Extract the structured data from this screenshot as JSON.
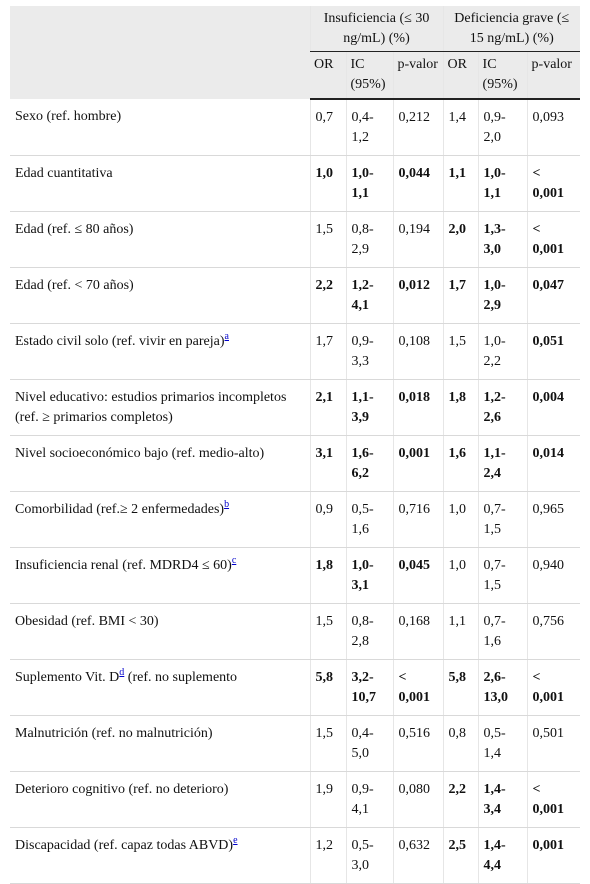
{
  "header": {
    "group1": "Insuficiencia (≤ 30 ng/mL) (%)",
    "group2": "Deficiencia grave (≤ 15 ng/mL) (%)",
    "or": "OR",
    "ic": "IC (95%)",
    "p": "p-valor"
  },
  "rows": [
    {
      "label": "Sexo (ref. hombre)",
      "sup": "",
      "cells": [
        [
          "0,7",
          false
        ],
        [
          "0,4-1,2",
          false
        ],
        [
          "0,212",
          false
        ],
        [
          "1,4",
          false
        ],
        [
          "0,9-2,0",
          false
        ],
        [
          "0,093",
          false
        ]
      ]
    },
    {
      "label": "Edad cuantitativa",
      "sup": "",
      "cells": [
        [
          "1,0",
          true
        ],
        [
          "1,0-1,1",
          true
        ],
        [
          "0,044",
          true
        ],
        [
          "1,1",
          true
        ],
        [
          "1,0-1,1",
          true
        ],
        [
          "< 0,001",
          true
        ]
      ]
    },
    {
      "label": "Edad (ref. ≤ 80 años)",
      "sup": "",
      "cells": [
        [
          "1,5",
          false
        ],
        [
          "0,8-2,9",
          false
        ],
        [
          "0,194",
          false
        ],
        [
          "2,0",
          true
        ],
        [
          "1,3-3,0",
          true
        ],
        [
          "< 0,001",
          true
        ]
      ]
    },
    {
      "label": "Edad (ref. < 70 años)",
      "sup": "",
      "cells": [
        [
          "2,2",
          true
        ],
        [
          "1,2-4,1",
          true
        ],
        [
          "0,012",
          true
        ],
        [
          "1,7",
          true
        ],
        [
          "1,0-2,9",
          true
        ],
        [
          "0,047",
          true
        ]
      ]
    },
    {
      "label": "Estado civil solo (ref. vivir en pareja)",
      "sup": "a",
      "cells": [
        [
          "1,7",
          false
        ],
        [
          "0,9-3,3",
          false
        ],
        [
          "0,108",
          false
        ],
        [
          "1,5",
          false
        ],
        [
          "1,0-2,2",
          false
        ],
        [
          "0,051",
          true
        ]
      ]
    },
    {
      "label": "Nivel educativo: estudios primarios incompletos (ref. ≥ primarios completos)",
      "sup": "",
      "cells": [
        [
          "2,1",
          true
        ],
        [
          "1,1-3,9",
          true
        ],
        [
          "0,018",
          true
        ],
        [
          "1,8",
          true
        ],
        [
          "1,2-2,6",
          true
        ],
        [
          "0,004",
          true
        ]
      ]
    },
    {
      "label": "Nivel socioeconómico bajo (ref. medio-alto)",
      "sup": "",
      "cells": [
        [
          "3,1",
          true
        ],
        [
          "1,6-6,2",
          true
        ],
        [
          "0,001",
          true
        ],
        [
          "1,6",
          true
        ],
        [
          "1,1-2,4",
          true
        ],
        [
          "0,014",
          true
        ]
      ]
    },
    {
      "label": "Comorbilidad (ref.≥ 2 enfermedades)",
      "sup": "b",
      "cells": [
        [
          "0,9",
          false
        ],
        [
          "0,5-1,6",
          false
        ],
        [
          "0,716",
          false
        ],
        [
          "1,0",
          false
        ],
        [
          "0,7-1,5",
          false
        ],
        [
          "0,965",
          false
        ]
      ]
    },
    {
      "label": "Insuficiencia renal (ref. MDRD4 ≤ 60)",
      "sup": "c",
      "cells": [
        [
          "1,8",
          true
        ],
        [
          "1,0-3,1",
          true
        ],
        [
          "0,045",
          true
        ],
        [
          "1,0",
          false
        ],
        [
          "0,7-1,5",
          false
        ],
        [
          "0,940",
          false
        ]
      ]
    },
    {
      "label": "Obesidad (ref. BMI < 30)",
      "sup": "",
      "cells": [
        [
          "1,5",
          false
        ],
        [
          "0,8-2,8",
          false
        ],
        [
          "0,168",
          false
        ],
        [
          "1,1",
          false
        ],
        [
          "0,7-1,6",
          false
        ],
        [
          "0,756",
          false
        ]
      ]
    },
    {
      "label": "Suplemento Vit. D",
      "sup": "d",
      "label_after": " (ref. no suplemento",
      "cells": [
        [
          "5,8",
          true
        ],
        [
          "3,2-10,7",
          true
        ],
        [
          "< 0,001",
          true
        ],
        [
          "5,8",
          true
        ],
        [
          "2,6-13,0",
          true
        ],
        [
          "< 0,001",
          true
        ]
      ]
    },
    {
      "label": "Malnutrición (ref. no malnutrición)",
      "sup": "",
      "cells": [
        [
          "1,5",
          false
        ],
        [
          "0,4-5,0",
          false
        ],
        [
          "0,516",
          false
        ],
        [
          "0,8",
          false
        ],
        [
          "0,5-1,4",
          false
        ],
        [
          "0,501",
          false
        ]
      ]
    },
    {
      "label": "Deterioro cognitivo (ref. no deterioro)",
      "sup": "",
      "cells": [
        [
          "1,9",
          false
        ],
        [
          "0,9-4,1",
          false
        ],
        [
          "0,080",
          false
        ],
        [
          "2,2",
          true
        ],
        [
          "1,4-3,4",
          true
        ],
        [
          "< 0,001",
          true
        ]
      ]
    },
    {
      "label": "Discapacidad (ref. capaz todas ABVD)",
      "sup": "e",
      "cells": [
        [
          "1,2",
          false
        ],
        [
          "0,5-3,0",
          false
        ],
        [
          "0,632",
          false
        ],
        [
          "2,5",
          true
        ],
        [
          "1,4-4,4",
          true
        ],
        [
          "0,001",
          true
        ]
      ]
    }
  ]
}
